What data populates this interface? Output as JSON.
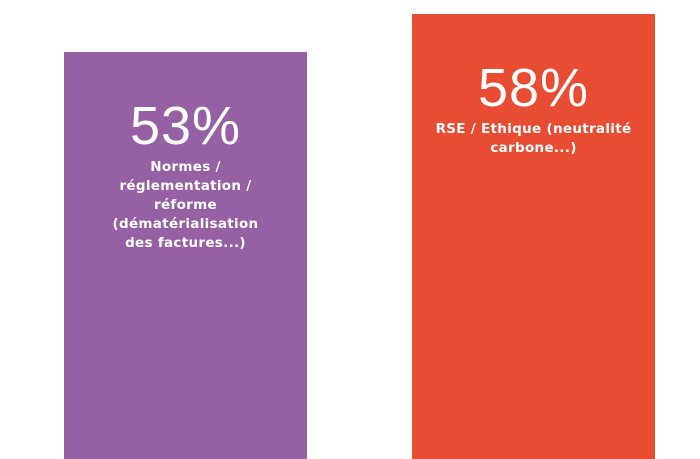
{
  "chart_data": {
    "type": "bar",
    "categories": [
      "Normes / réglementation / réforme (dématérialisation des factures...)",
      "RSE / Ethique (neutralité carbone...)"
    ],
    "values": [
      53,
      58
    ],
    "value_labels": [
      "53%",
      "58%"
    ],
    "colors": [
      "#9560a4",
      "#e84c33"
    ]
  }
}
